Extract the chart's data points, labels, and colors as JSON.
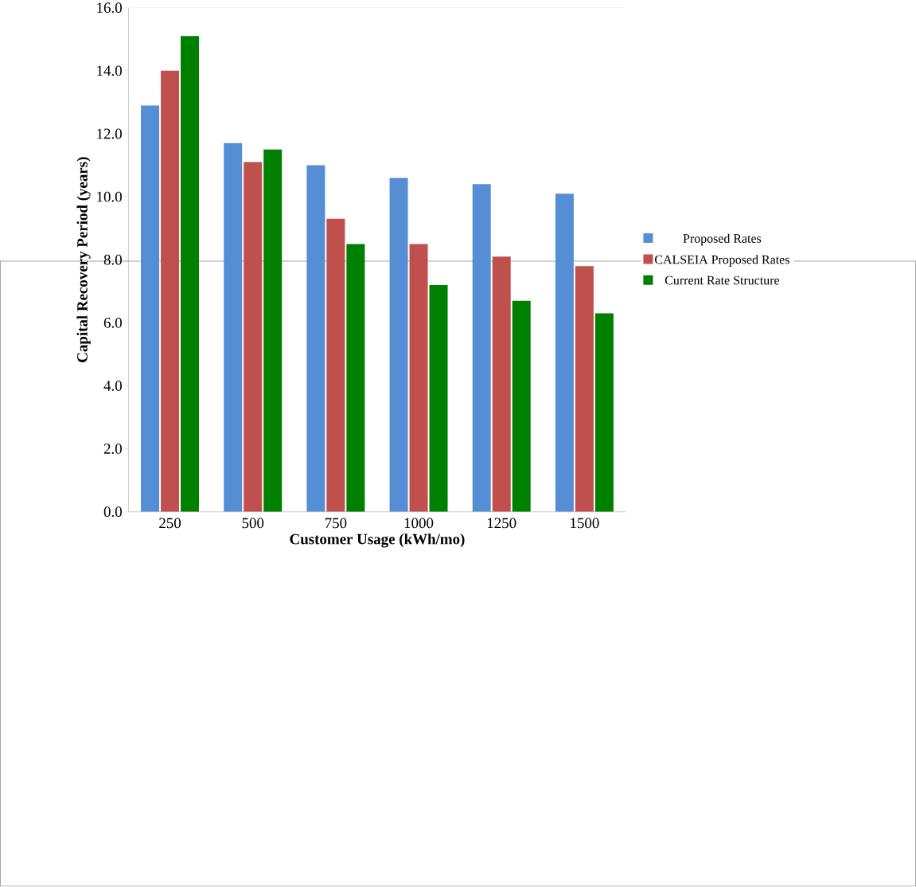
{
  "chart_data": {
    "type": "bar",
    "xlabel": "Customer Usage (kWh/mo)",
    "ylabel": "Capital Recovery Period (years)",
    "categories": [
      "250",
      "500",
      "750",
      "1000",
      "1250",
      "1500"
    ],
    "series": [
      {
        "name": "Proposed Rates",
        "color": "#558ed5",
        "values": [
          12.9,
          11.7,
          11.0,
          10.6,
          10.4,
          10.1
        ]
      },
      {
        "name": "CALSEIA Proposed Rates",
        "color": "#c0504d",
        "values": [
          14.0,
          11.1,
          9.3,
          8.5,
          8.1,
          7.8
        ]
      },
      {
        "name": "Current Rate Structure",
        "color": "#008000",
        "values": [
          15.1,
          11.5,
          8.5,
          7.2,
          6.7,
          6.3
        ]
      }
    ],
    "ylim": [
      0,
      16
    ],
    "yticks": [
      {
        "value": 0,
        "label": "0.0"
      },
      {
        "value": 2,
        "label": "2.0"
      },
      {
        "value": 4,
        "label": "4.0"
      },
      {
        "value": 6,
        "label": "6.0"
      },
      {
        "value": 8,
        "label": "8.0"
      },
      {
        "value": 10,
        "label": "10.0"
      },
      {
        "value": 12,
        "label": "12.0"
      },
      {
        "value": 14,
        "label": "14.0"
      },
      {
        "value": 16,
        "label": "16.0"
      }
    ],
    "legend": "right",
    "grid": false
  }
}
